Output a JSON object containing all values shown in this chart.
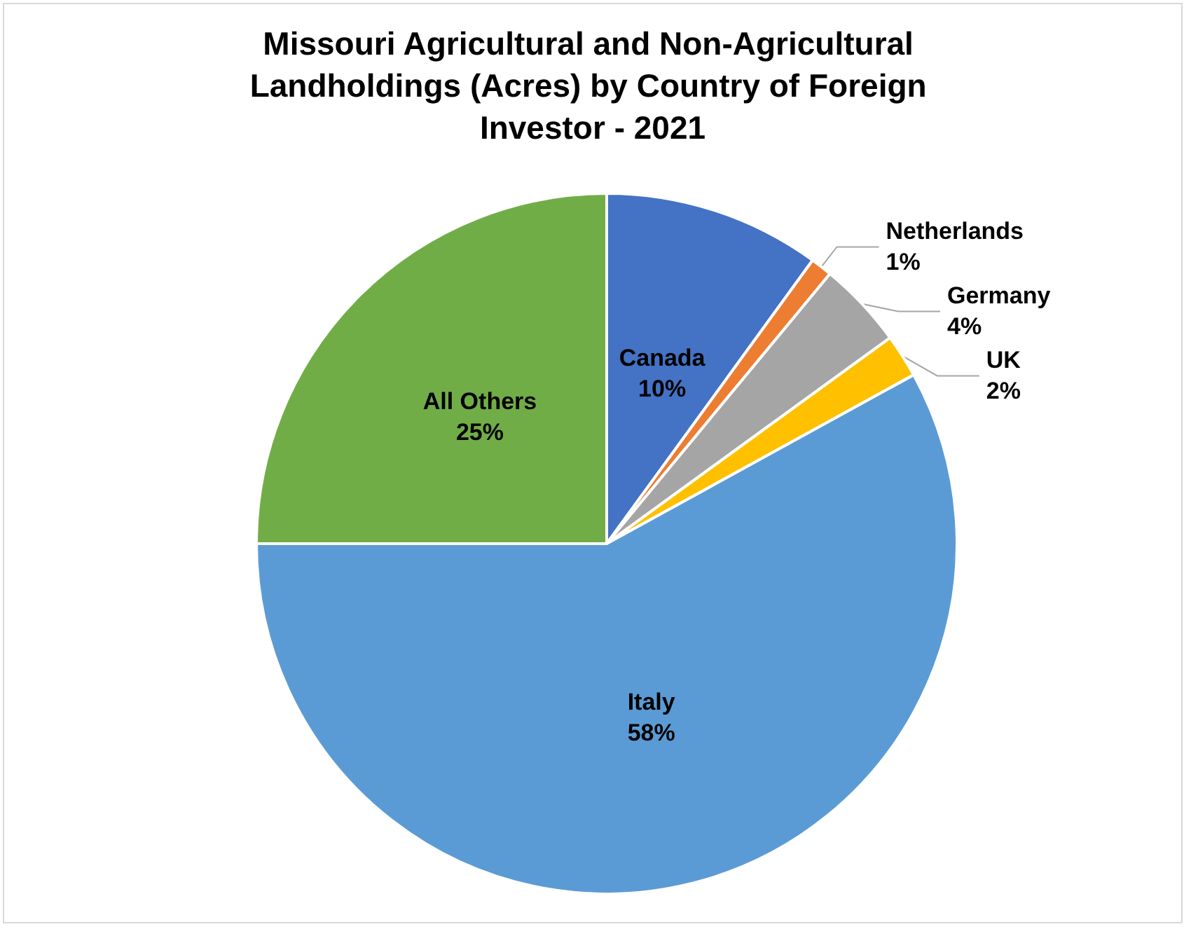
{
  "chart_data": {
    "type": "pie",
    "title": "Missouri Agricultural and Non-Agricultural Landholdings (Acres) by Country of Foreign Investor - 2021",
    "categories": [
      "Canada",
      "Netherlands",
      "Germany",
      "UK",
      "Italy",
      "All Others"
    ],
    "values": [
      10,
      1,
      4,
      2,
      58,
      25
    ],
    "value_labels": [
      "10%",
      "1%",
      "4%",
      "2%",
      "58%",
      "25%"
    ],
    "colors": [
      "#4472c4",
      "#ed7d31",
      "#a5a5a5",
      "#ffc000",
      "#5b9bd5",
      "#70ad47"
    ],
    "legend": false
  }
}
